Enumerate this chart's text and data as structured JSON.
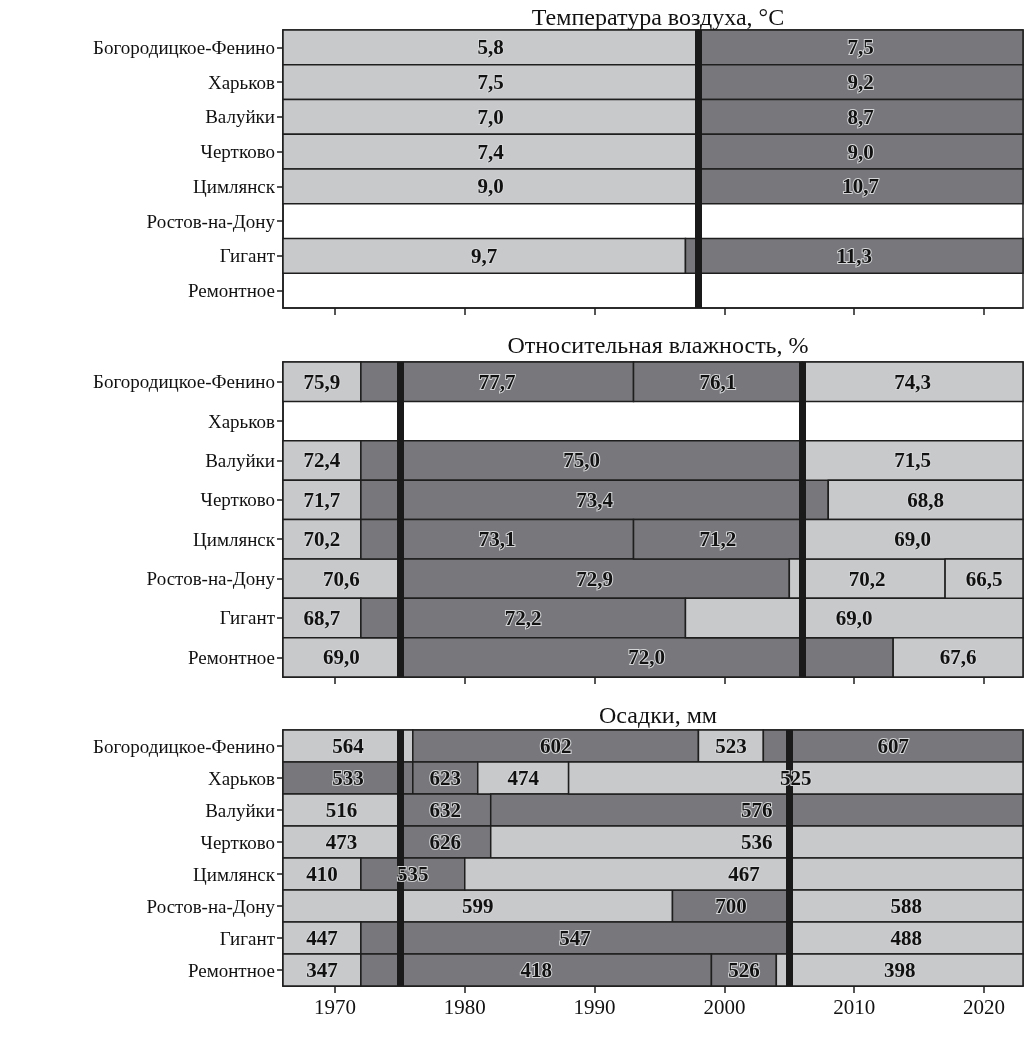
{
  "chart_data": [
    {
      "type": "bar",
      "orientation": "horizontal",
      "title": "Температура воздуха, °C",
      "categories": [
        "Богородицкое-Фенино",
        "Харьков",
        "Валуйки",
        "Чертково",
        "Цимлянск",
        "Ростов-на-Дону",
        "Гигант",
        "Ремонтное"
      ],
      "xlim": [
        1966,
        2023
      ],
      "xticks": [
        {
          "value": 1970,
          "label": null
        },
        {
          "value": 1980,
          "label": null
        },
        {
          "value": 1990,
          "label": null
        },
        {
          "value": 2000,
          "label": null
        },
        {
          "value": 2010,
          "label": null
        },
        {
          "value": 2020,
          "label": null
        }
      ],
      "tick_labels": "y",
      "grid": false,
      "ref_lines": [
        {
          "axis": "x",
          "value": 1998,
          "color": "#1a1a1a"
        }
      ],
      "series": [
        {
          "base": [
            1966,
            1966,
            1966,
            1966,
            1966,
            null,
            1966,
            null
          ],
          "values": [
            32,
            32,
            32,
            32,
            32,
            null,
            31,
            null
          ],
          "colors": [
            "#c8c9cb",
            "#c8c9cb",
            "#c8c9cb",
            "#c8c9cb",
            "#c8c9cb",
            null,
            "#c8c9cb",
            null
          ]
        },
        {
          "base": [
            1998,
            1998,
            1998,
            1998,
            1998,
            null,
            1997,
            null
          ],
          "values": [
            25,
            25,
            25,
            25,
            25,
            null,
            26,
            null
          ],
          "colors": [
            "#78787c",
            "#78787c",
            "#78787c",
            "#78787c",
            "#78787c",
            null,
            "#78787c",
            null
          ]
        }
      ],
      "annotations": [
        {
          "text": "5,8",
          "x": 1982,
          "y": "Богородицкое-Фенино"
        },
        {
          "text": "7,5",
          "x": 2010.5,
          "y": "Богородицкое-Фенино"
        },
        {
          "text": "7,5",
          "x": 1982,
          "y": "Харьков"
        },
        {
          "text": "9,2",
          "x": 2010.5,
          "y": "Харьков"
        },
        {
          "text": "7,0",
          "x": 1982,
          "y": "Валуйки"
        },
        {
          "text": "8,7",
          "x": 2010.5,
          "y": "Валуйки"
        },
        {
          "text": "7,4",
          "x": 1982,
          "y": "Чертково"
        },
        {
          "text": "9,0",
          "x": 2010.5,
          "y": "Чертково"
        },
        {
          "text": "9,0",
          "x": 1982,
          "y": "Цимлянск"
        },
        {
          "text": "10,7",
          "x": 2010.5,
          "y": "Цимлянск"
        },
        {
          "text": "9,7",
          "x": 1981.5,
          "y": "Гигант"
        },
        {
          "text": "11,3",
          "x": 2010,
          "y": "Гигант"
        }
      ]
    },
    {
      "type": "bar",
      "orientation": "horizontal",
      "title": "Относительная влажность, %",
      "categories": [
        "Богородицкое-Фенино",
        "Харьков",
        "Валуйки",
        "Чертково",
        "Цимлянск",
        "Ростов-на-Дону",
        "Гигант",
        "Ремонтное"
      ],
      "xlim": [
        1966,
        2023
      ],
      "xticks": [
        {
          "value": 1970,
          "label": null
        },
        {
          "value": 1980,
          "label": null
        },
        {
          "value": 1990,
          "label": null
        },
        {
          "value": 2000,
          "label": null
        },
        {
          "value": 2010,
          "label": null
        },
        {
          "value": 2020,
          "label": null
        }
      ],
      "tick_labels": "y",
      "grid": false,
      "ref_lines": [
        {
          "axis": "x",
          "value": 1975,
          "color": "#1a1a1a"
        },
        {
          "axis": "x",
          "value": 2006,
          "color": "#1a1a1a"
        }
      ],
      "series": [
        {
          "base": [
            1966,
            null,
            1966,
            1966,
            1966,
            1966,
            1966,
            1966
          ],
          "values": [
            6,
            null,
            6,
            6,
            6,
            9,
            6,
            9
          ],
          "colors": [
            "#c8c9cb",
            null,
            "#c8c9cb",
            "#c8c9cb",
            "#c8c9cb",
            "#c8c9cb",
            "#c8c9cb",
            "#c8c9cb"
          ]
        },
        {
          "base": [
            1972,
            null,
            1972,
            1972,
            1972,
            1975,
            1972,
            1975
          ],
          "values": [
            21,
            null,
            34,
            36,
            21,
            30,
            25,
            38
          ],
          "colors": [
            "#78787c",
            null,
            "#78787c",
            "#78787c",
            "#78787c",
            "#78787c",
            "#78787c",
            "#78787c"
          ]
        },
        {
          "base": [
            1993,
            null,
            2006,
            2008,
            1993,
            2005,
            1997,
            2013
          ],
          "values": [
            13,
            null,
            17,
            15,
            13,
            12,
            26,
            10
          ],
          "colors": [
            "#78787c",
            null,
            "#c8c9cb",
            "#c8c9cb",
            "#78787c",
            "#c8c9cb",
            "#c8c9cb",
            "#c8c9cb"
          ]
        },
        {
          "base": [
            2006,
            null,
            null,
            null,
            2006,
            2017,
            null,
            null
          ],
          "values": [
            17,
            null,
            null,
            null,
            17,
            6,
            null,
            null
          ],
          "colors": [
            "#c8c9cb",
            null,
            null,
            null,
            "#c8c9cb",
            "#c8c9cb",
            null,
            null
          ]
        }
      ],
      "annotations": [
        {
          "text": "75,9",
          "x": 1969,
          "y": "Богородицкое-Фенино"
        },
        {
          "text": "77,7",
          "x": 1982.5,
          "y": "Богородицкое-Фенино"
        },
        {
          "text": "76,1",
          "x": 1999.5,
          "y": "Богородицкое-Фенино"
        },
        {
          "text": "74,3",
          "x": 2014.5,
          "y": "Богородицкое-Фенино"
        },
        {
          "text": "72,4",
          "x": 1969,
          "y": "Валуйки"
        },
        {
          "text": "75,0",
          "x": 1989,
          "y": "Валуйки"
        },
        {
          "text": "71,5",
          "x": 2014.5,
          "y": "Валуйки"
        },
        {
          "text": "71,7",
          "x": 1969,
          "y": "Чертково"
        },
        {
          "text": "73,4",
          "x": 1990,
          "y": "Чертково"
        },
        {
          "text": "68,8",
          "x": 2015.5,
          "y": "Чертково"
        },
        {
          "text": "70,2",
          "x": 1969,
          "y": "Цимлянск"
        },
        {
          "text": "73,1",
          "x": 1982.5,
          "y": "Цимлянск"
        },
        {
          "text": "71,2",
          "x": 1999.5,
          "y": "Цимлянск"
        },
        {
          "text": "69,0",
          "x": 2014.5,
          "y": "Цимлянск"
        },
        {
          "text": "70,6",
          "x": 1970.5,
          "y": "Ростов-на-Дону"
        },
        {
          "text": "72,9",
          "x": 1990,
          "y": "Ростов-на-Дону"
        },
        {
          "text": "70,2",
          "x": 2011,
          "y": "Ростов-на-Дону"
        },
        {
          "text": "66,5",
          "x": 2020,
          "y": "Ростов-на-Дону"
        },
        {
          "text": "68,7",
          "x": 1969,
          "y": "Гигант"
        },
        {
          "text": "72,2",
          "x": 1984.5,
          "y": "Гигант"
        },
        {
          "text": "69,0",
          "x": 2010,
          "y": "Гигант"
        },
        {
          "text": "69,0",
          "x": 1970.5,
          "y": "Ремонтное"
        },
        {
          "text": "72,0",
          "x": 1994,
          "y": "Ремонтное"
        },
        {
          "text": "67,6",
          "x": 2018,
          "y": "Ремонтное"
        }
      ]
    },
    {
      "type": "bar",
      "orientation": "horizontal",
      "title": "Осадки, мм",
      "categories": [
        "Богородицкое-Фенино",
        "Харьков",
        "Валуйки",
        "Чертково",
        "Цимлянск",
        "Ростов-на-Дону",
        "Гигант",
        "Ремонтное"
      ],
      "xlim": [
        1966,
        2023
      ],
      "xticks": [
        1970,
        1980,
        1990,
        2000,
        2010,
        2020
      ],
      "grid": false,
      "ref_lines": [
        {
          "axis": "x",
          "value": 1975,
          "color": "#1a1a1a"
        },
        {
          "axis": "x",
          "value": 2005,
          "color": "#1a1a1a"
        }
      ],
      "series": [
        {
          "base": [
            1966,
            1966,
            1966,
            1966,
            1966,
            1966,
            1966,
            1966
          ],
          "values": [
            10,
            10,
            9,
            9,
            6,
            30,
            6,
            6
          ],
          "colors": [
            "#c8c9cb",
            "#78787c",
            "#c8c9cb",
            "#c8c9cb",
            "#c8c9cb",
            "#c8c9cb",
            "#c8c9cb",
            "#c8c9cb"
          ]
        },
        {
          "base": [
            1976,
            1976,
            1975,
            1975,
            1972,
            1996,
            1972,
            1972
          ],
          "values": [
            22,
            5,
            7,
            7,
            8,
            9,
            33,
            27
          ],
          "colors": [
            "#78787c",
            "#78787c",
            "#78787c",
            "#78787c",
            "#78787c",
            "#78787c",
            "#78787c",
            "#78787c"
          ]
        },
        {
          "base": [
            1998,
            1981,
            1982,
            1982,
            1980,
            2005,
            2005,
            1999
          ],
          "values": [
            5,
            7,
            41,
            41,
            43,
            18,
            18,
            5
          ],
          "colors": [
            "#c8c9cb",
            "#c8c9cb",
            "#78787c",
            "#c8c9cb",
            "#c8c9cb",
            "#c8c9cb",
            "#c8c9cb",
            "#78787c"
          ]
        },
        {
          "base": [
            2003,
            1988,
            null,
            null,
            null,
            null,
            null,
            2004
          ],
          "values": [
            20,
            35,
            null,
            null,
            null,
            null,
            null,
            19
          ],
          "colors": [
            "#78787c",
            "#c8c9cb",
            null,
            null,
            null,
            null,
            null,
            "#c8c9cb"
          ]
        }
      ],
      "annotations": [
        {
          "text": "564",
          "x": 1971,
          "y": "Богородицкое-Фенино"
        },
        {
          "text": "602",
          "x": 1987,
          "y": "Богородицкое-Фенино"
        },
        {
          "text": "523",
          "x": 2000.5,
          "y": "Богородицкое-Фенино"
        },
        {
          "text": "607",
          "x": 2013,
          "y": "Богородицкое-Фенино"
        },
        {
          "text": "533",
          "x": 1971,
          "y": "Харьков"
        },
        {
          "text": "623",
          "x": 1978.5,
          "y": "Харьков"
        },
        {
          "text": "474",
          "x": 1984.5,
          "y": "Харьков"
        },
        {
          "text": "525",
          "x": 2005.5,
          "y": "Харьков"
        },
        {
          "text": "516",
          "x": 1970.5,
          "y": "Валуйки"
        },
        {
          "text": "632",
          "x": 1978.5,
          "y": "Валуйки"
        },
        {
          "text": "576",
          "x": 2002.5,
          "y": "Валуйки"
        },
        {
          "text": "473",
          "x": 1970.5,
          "y": "Чертково"
        },
        {
          "text": "626",
          "x": 1978.5,
          "y": "Чертково"
        },
        {
          "text": "536",
          "x": 2002.5,
          "y": "Чертково"
        },
        {
          "text": "410",
          "x": 1969,
          "y": "Цимлянск"
        },
        {
          "text": "535",
          "x": 1976,
          "y": "Цимлянск"
        },
        {
          "text": "467",
          "x": 2001.5,
          "y": "Цимлянск"
        },
        {
          "text": "599",
          "x": 1981,
          "y": "Ростов-на-Дону"
        },
        {
          "text": "700",
          "x": 2000.5,
          "y": "Ростов-на-Дону"
        },
        {
          "text": "588",
          "x": 2014,
          "y": "Ростов-на-Дону"
        },
        {
          "text": "447",
          "x": 1969,
          "y": "Гигант"
        },
        {
          "text": "547",
          "x": 1988.5,
          "y": "Гигант"
        },
        {
          "text": "488",
          "x": 2014,
          "y": "Гигант"
        },
        {
          "text": "347",
          "x": 1969,
          "y": "Ремонтное"
        },
        {
          "text": "418",
          "x": 1985.5,
          "y": "Ремонтное"
        },
        {
          "text": "526",
          "x": 2001.5,
          "y": "Ремонтное"
        },
        {
          "text": "398",
          "x": 2013.5,
          "y": "Ремонтное"
        }
      ]
    }
  ]
}
